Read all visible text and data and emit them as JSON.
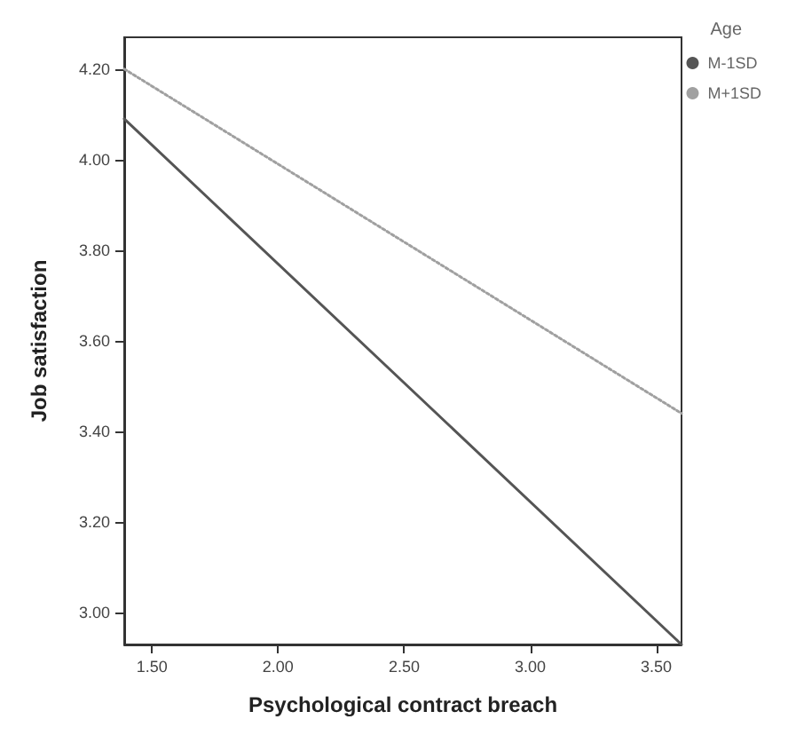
{
  "chart_data": {
    "type": "line",
    "xlabel": "Psychological contract breach",
    "ylabel": "Job satisfaction",
    "legend_title": "Age",
    "legend": "right",
    "x": [
      1.39,
      3.6
    ],
    "series": [
      {
        "name": "M-1SD",
        "color": "#555555",
        "values": [
          4.09,
          2.93
        ],
        "line_style": "solid"
      },
      {
        "name": "M+1SD",
        "color": "#a0a0a0",
        "values": [
          4.2,
          3.44
        ],
        "line_style": "dotted"
      }
    ],
    "xlim": [
      1.39,
      3.6
    ],
    "xticks": [
      {
        "value": 1.5,
        "label": "1.50"
      },
      {
        "value": 2,
        "label": "2.00"
      },
      {
        "value": 2.5,
        "label": "2.50"
      },
      {
        "value": 3,
        "label": "3.00"
      },
      {
        "value": 3.5,
        "label": "3.50"
      }
    ],
    "ylim": [
      2.93,
      4.27
    ],
    "yticks": [
      {
        "value": 3,
        "label": "3.00"
      },
      {
        "value": 3.2,
        "label": "3.20"
      },
      {
        "value": 3.4,
        "label": "3.40"
      },
      {
        "value": 3.6,
        "label": "3.60"
      },
      {
        "value": 3.8,
        "label": "3.80"
      },
      {
        "value": 4,
        "label": "4.00"
      },
      {
        "value": 4.2,
        "label": "4.20"
      }
    ],
    "grid": false,
    "marker": "none"
  }
}
